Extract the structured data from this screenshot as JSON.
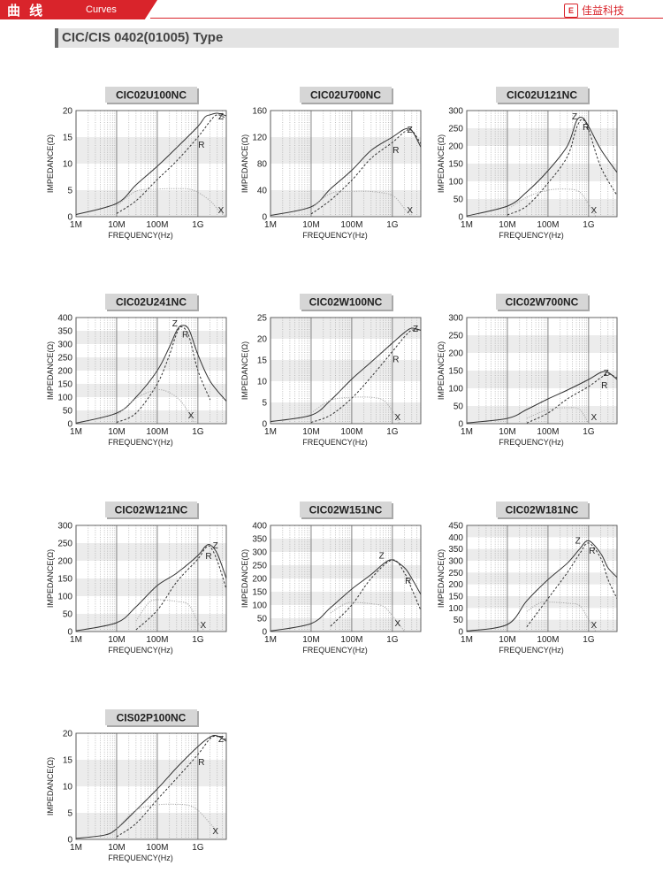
{
  "header": {
    "section_cn": "曲 线",
    "section_en": "Curves",
    "brand": "佳益科技",
    "brand_icon": "E"
  },
  "section_title": "CIC/CIS 0402(01005) Type",
  "chart_data": [
    {
      "type": "line",
      "title": "CIC02U100NC",
      "ylabel": "IMPEDANCE(Ω)",
      "xlabel": "FREQUENCY(Hz)",
      "x_scale": "log",
      "xlim": [
        "1M",
        "5G"
      ],
      "xticks": [
        "1M",
        "10M",
        "100M",
        "1G"
      ],
      "ylim": [
        0,
        20
      ],
      "yticks": [
        0,
        5,
        10,
        15,
        20
      ],
      "series": [
        {
          "name": "Z",
          "x": [
            "1M",
            "10M",
            "30M",
            "100M",
            "300M",
            "1G",
            "1.5G",
            "2G",
            "3G",
            "5G"
          ],
          "y": [
            0.4,
            2.5,
            6,
            9.5,
            13,
            17,
            18.8,
            19.2,
            19.5,
            19
          ]
        },
        {
          "name": "R",
          "x": [
            "10M",
            "30M",
            "100M",
            "300M",
            "1G",
            "2G",
            "3G",
            "5G"
          ],
          "y": [
            0.6,
            3,
            7,
            10.5,
            15,
            18,
            19.2,
            18.5
          ]
        },
        {
          "name": "X",
          "x": [
            "10M",
            "30M",
            "100M",
            "300M",
            "600M",
            "1G",
            "2G",
            "3G",
            "5G"
          ],
          "y": [
            2,
            4.8,
            5.2,
            5.3,
            5.2,
            4.6,
            3,
            1.5,
            0
          ]
        }
      ]
    },
    {
      "type": "line",
      "title": "CIC02U700NC",
      "ylabel": "IMPEDANCE(Ω)",
      "xlabel": "FREQUENCY(Hz)",
      "x_scale": "log",
      "xlim": [
        "1M",
        "5G"
      ],
      "xticks": [
        "1M",
        "10M",
        "100M",
        "1G"
      ],
      "ylim": [
        0,
        160
      ],
      "yticks": [
        0,
        40,
        80,
        120,
        160
      ],
      "series": [
        {
          "name": "Z",
          "x": [
            "1M",
            "10M",
            "30M",
            "100M",
            "300M",
            "1G",
            "2G",
            "3G",
            "5G"
          ],
          "y": [
            2,
            15,
            42,
            70,
            100,
            120,
            132,
            130,
            105
          ]
        },
        {
          "name": "R",
          "x": [
            "10M",
            "30M",
            "100M",
            "300M",
            "1G",
            "2G",
            "3G",
            "5G"
          ],
          "y": [
            4,
            25,
            55,
            88,
            112,
            128,
            130,
            110
          ]
        },
        {
          "name": "X",
          "x": [
            "10M",
            "30M",
            "100M",
            "300M",
            "1G",
            "2G",
            "3G"
          ],
          "y": [
            12,
            35,
            38,
            38,
            32,
            12,
            0
          ]
        }
      ]
    },
    {
      "type": "line",
      "title": "CIC02U121NC",
      "ylabel": "IMPEDANCE(Ω)",
      "xlabel": "FREQUENCY(Hz)",
      "x_scale": "log",
      "xlim": [
        "1M",
        "5G"
      ],
      "xticks": [
        "1M",
        "10M",
        "100M",
        "1G"
      ],
      "ylim": [
        0,
        300
      ],
      "yticks": [
        0,
        50,
        100,
        150,
        200,
        250,
        300
      ],
      "series": [
        {
          "name": "Z",
          "x": [
            "1M",
            "10M",
            "30M",
            "100M",
            "300M",
            "500M",
            "700M",
            "1G",
            "2G",
            "5G"
          ],
          "y": [
            2,
            30,
            70,
            130,
            200,
            270,
            280,
            255,
            190,
            125
          ]
        },
        {
          "name": "R",
          "x": [
            "10M",
            "30M",
            "100M",
            "300M",
            "500M",
            "700M",
            "1G",
            "2G",
            "5G"
          ],
          "y": [
            5,
            30,
            95,
            170,
            250,
            275,
            245,
            140,
            60
          ]
        },
        {
          "name": "X",
          "x": [
            "10M",
            "30M",
            "100M",
            "300M",
            "600M",
            "1G",
            "1.5G"
          ],
          "y": [
            20,
            55,
            75,
            78,
            70,
            35,
            0
          ]
        }
      ]
    },
    {
      "type": "line",
      "title": "CIC02U241NC",
      "ylabel": "IMPEDANCE(Ω)",
      "xlabel": "FREQUENCY(Hz)",
      "x_scale": "log",
      "xlim": [
        "1M",
        "5G"
      ],
      "xticks": [
        "1M",
        "10M",
        "100M",
        "1G"
      ],
      "ylim": [
        0,
        400
      ],
      "yticks": [
        0,
        50,
        100,
        150,
        200,
        250,
        300,
        350,
        400
      ],
      "series": [
        {
          "name": "Z",
          "x": [
            "1M",
            "10M",
            "30M",
            "100M",
            "200M",
            "300M",
            "400M",
            "600M",
            "1G",
            "2G",
            "5G"
          ],
          "y": [
            2,
            40,
            100,
            200,
            290,
            350,
            370,
            355,
            260,
            160,
            85
          ]
        },
        {
          "name": "R",
          "x": [
            "10M",
            "30M",
            "100M",
            "200M",
            "300M",
            "400M",
            "600M",
            "1G",
            "2G"
          ],
          "y": [
            5,
            40,
            150,
            260,
            340,
            365,
            330,
            200,
            90
          ]
        },
        {
          "name": "X",
          "x": [
            "10M",
            "30M",
            "80M",
            "150M",
            "300M",
            "500M",
            "800M"
          ],
          "y": [
            30,
            95,
            125,
            125,
            100,
            60,
            0
          ]
        }
      ]
    },
    {
      "type": "line",
      "title": "CIC02W100NC",
      "ylabel": "IMPEDANCE(Ω)",
      "xlabel": "FREQUENCY(Hz)",
      "x_scale": "log",
      "xlim": [
        "1M",
        "5G"
      ],
      "xticks": [
        "1M",
        "10M",
        "100M",
        "1G"
      ],
      "ylim": [
        0,
        25
      ],
      "yticks": [
        0,
        5,
        10,
        15,
        20,
        25
      ],
      "series": [
        {
          "name": "Z",
          "x": [
            "1M",
            "10M",
            "30M",
            "100M",
            "300M",
            "1G",
            "2G",
            "3G",
            "5G"
          ],
          "y": [
            0.5,
            2,
            5.5,
            10.5,
            14.5,
            19,
            21.5,
            22.5,
            22
          ]
        },
        {
          "name": "R",
          "x": [
            "10M",
            "30M",
            "100M",
            "300M",
            "1G",
            "2G",
            "3G",
            "5G"
          ],
          "y": [
            0.3,
            2,
            6,
            11,
            17,
            20.5,
            22,
            22
          ]
        },
        {
          "name": "X",
          "x": [
            "10M",
            "30M",
            "100M",
            "300M",
            "600M",
            "1G",
            "1.5G"
          ],
          "y": [
            2.5,
            5.5,
            6.2,
            6.2,
            5.5,
            3,
            0
          ]
        }
      ]
    },
    {
      "type": "line",
      "title": "CIC02W700NC",
      "ylabel": "IMPEDANCE(Ω)",
      "xlabel": "FREQUENCY(Hz)",
      "x_scale": "log",
      "xlim": [
        "1M",
        "5G"
      ],
      "xticks": [
        "1M",
        "10M",
        "100M",
        "1G"
      ],
      "ylim": [
        0,
        300
      ],
      "yticks": [
        0,
        50,
        100,
        150,
        200,
        250,
        300
      ],
      "series": [
        {
          "name": "Z",
          "x": [
            "1M",
            "10M",
            "30M",
            "100M",
            "300M",
            "1G",
            "2G",
            "3G",
            "5G"
          ],
          "y": [
            2,
            15,
            40,
            70,
            95,
            125,
            145,
            145,
            125
          ]
        },
        {
          "name": "R",
          "x": [
            "30M",
            "100M",
            "300M",
            "1G",
            "2G",
            "3G",
            "5G"
          ],
          "y": [
            2,
            30,
            70,
            105,
            130,
            140,
            130
          ]
        },
        {
          "name": "X",
          "x": [
            "30M",
            "100M",
            "300M",
            "600M",
            "1G"
          ],
          "y": [
            15,
            40,
            45,
            40,
            0
          ]
        }
      ]
    },
    {
      "type": "line",
      "title": "CIC02W121NC",
      "ylabel": "IMPEDANCE(Ω)",
      "xlabel": "FREQUENCY(Hz)",
      "x_scale": "log",
      "xlim": [
        "1M",
        "5G"
      ],
      "xticks": [
        "1M",
        "10M",
        "100M",
        "1G"
      ],
      "ylim": [
        0,
        300
      ],
      "yticks": [
        0,
        50,
        100,
        150,
        200,
        250,
        300
      ],
      "series": [
        {
          "name": "Z",
          "x": [
            "1M",
            "10M",
            "30M",
            "100M",
            "300M",
            "1G",
            "1.5G",
            "2G",
            "3G",
            "5G"
          ],
          "y": [
            2,
            25,
            70,
            130,
            165,
            215,
            240,
            245,
            220,
            150
          ]
        },
        {
          "name": "R",
          "x": [
            "30M",
            "100M",
            "300M",
            "1G",
            "1.5G",
            "2G",
            "3G",
            "5G"
          ],
          "y": [
            5,
            60,
            140,
            205,
            235,
            240,
            200,
            120
          ]
        },
        {
          "name": "X",
          "x": [
            "30M",
            "60M",
            "100M",
            "300M",
            "600M",
            "1G",
            "1.5G"
          ],
          "y": [
            30,
            80,
            90,
            85,
            75,
            25,
            0
          ]
        }
      ]
    },
    {
      "type": "line",
      "title": "CIC02W151NC",
      "ylabel": "IMPEDANCE(Ω)",
      "xlabel": "FREQUENCY(Hz)",
      "x_scale": "log",
      "xlim": [
        "1M",
        "5G"
      ],
      "xticks": [
        "1M",
        "10M",
        "100M",
        "1G"
      ],
      "ylim": [
        0,
        400
      ],
      "yticks": [
        0,
        50,
        100,
        150,
        200,
        250,
        300,
        350,
        400
      ],
      "series": [
        {
          "name": "Z",
          "x": [
            "1M",
            "10M",
            "30M",
            "100M",
            "300M",
            "600M",
            "1G",
            "2G",
            "3G",
            "5G"
          ],
          "y": [
            2,
            30,
            90,
            160,
            215,
            255,
            270,
            240,
            200,
            140
          ]
        },
        {
          "name": "R",
          "x": [
            "30M",
            "100M",
            "300M",
            "1G",
            "2G",
            "3G",
            "5G"
          ],
          "y": [
            20,
            100,
            200,
            270,
            220,
            160,
            80
          ]
        },
        {
          "name": "X",
          "x": [
            "30M",
            "60M",
            "100M",
            "300M",
            "600M",
            "1G",
            "2G"
          ],
          "y": [
            70,
            100,
            110,
            105,
            95,
            60,
            0
          ]
        }
      ]
    },
    {
      "type": "line",
      "title": "CIC02W181NC",
      "ylabel": "IMPEDANCE(Ω)",
      "xlabel": "FREQUENCY(Hz)",
      "x_scale": "log",
      "xlim": [
        "1M",
        "5G"
      ],
      "xticks": [
        "1M",
        "10M",
        "100M",
        "1G"
      ],
      "ylim": [
        0,
        450
      ],
      "yticks": [
        0,
        50,
        100,
        150,
        200,
        250,
        300,
        350,
        400,
        450
      ],
      "series": [
        {
          "name": "Z",
          "x": [
            "1M",
            "10M",
            "30M",
            "100M",
            "300M",
            "600M",
            "1G",
            "2G",
            "3G",
            "5G"
          ],
          "y": [
            2,
            30,
            130,
            220,
            290,
            350,
            385,
            330,
            270,
            230
          ]
        },
        {
          "name": "R",
          "x": [
            "30M",
            "100M",
            "300M",
            "600M",
            "1G",
            "2G",
            "3G",
            "5G"
          ],
          "y": [
            20,
            140,
            250,
            330,
            375,
            310,
            220,
            140
          ]
        },
        {
          "name": "X",
          "x": [
            "30M",
            "60M",
            "100M",
            "300M",
            "600M",
            "1G",
            "1.5G"
          ],
          "y": [
            85,
            120,
            125,
            120,
            110,
            50,
            0
          ]
        }
      ]
    },
    {
      "type": "line",
      "title": "CIS02P100NC",
      "ylabel": "IMPEDANCE(Ω)",
      "xlabel": "FREQUENCY(Hz)",
      "x_scale": "log",
      "xlim": [
        "1M",
        "5G"
      ],
      "xticks": [
        "1M",
        "10M",
        "100M",
        "1G"
      ],
      "ylim": [
        0,
        20
      ],
      "yticks": [
        0,
        5,
        10,
        15,
        20
      ],
      "series": [
        {
          "name": "Z",
          "x": [
            "1M",
            "5M",
            "10M",
            "30M",
            "100M",
            "300M",
            "1G",
            "2G",
            "3G",
            "5G"
          ],
          "y": [
            0.2,
            0.8,
            2,
            5.5,
            9.5,
            13.5,
            17.5,
            19.3,
            19.5,
            18.5
          ]
        },
        {
          "name": "R",
          "x": [
            "10M",
            "30M",
            "100M",
            "300M",
            "1G",
            "2G",
            "3G",
            "5G"
          ],
          "y": [
            0.5,
            3,
            7.5,
            11.5,
            16,
            19,
            19.4,
            18.8
          ]
        },
        {
          "name": "X",
          "x": [
            "10M",
            "30M",
            "100M",
            "300M",
            "600M",
            "1G",
            "2G",
            "3G"
          ],
          "y": [
            2,
            5.5,
            6.5,
            6.6,
            6.4,
            5.5,
            3,
            1.5
          ]
        }
      ]
    }
  ]
}
